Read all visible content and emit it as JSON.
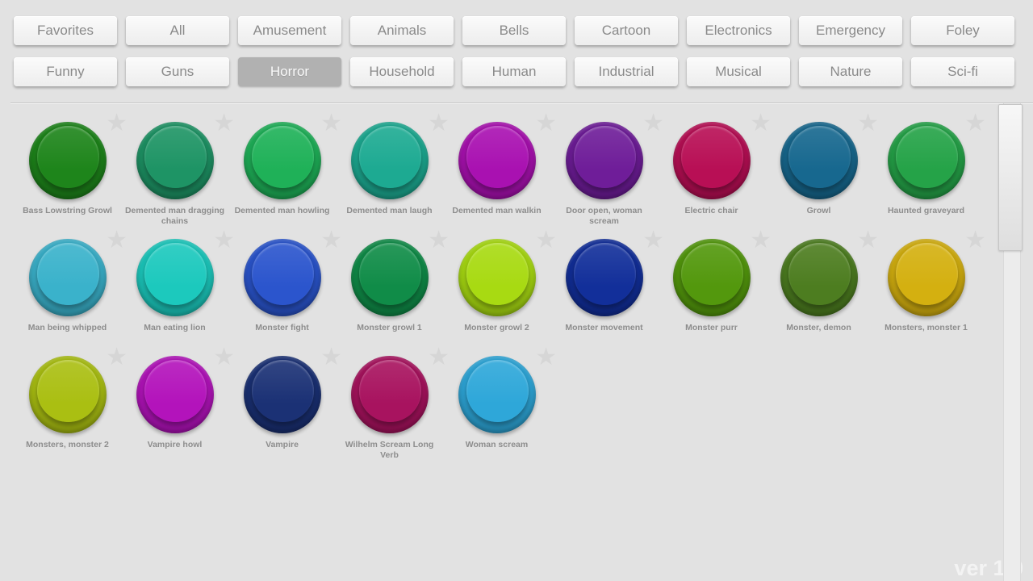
{
  "app": {
    "version_label": "ver 1.0"
  },
  "tabs": {
    "items": [
      {
        "label": "Favorites",
        "active": false
      },
      {
        "label": "All",
        "active": false
      },
      {
        "label": "Amusement",
        "active": false
      },
      {
        "label": "Animals",
        "active": false
      },
      {
        "label": "Bells",
        "active": false
      },
      {
        "label": "Cartoon",
        "active": false
      },
      {
        "label": "Electronics",
        "active": false
      },
      {
        "label": "Emergency",
        "active": false
      },
      {
        "label": "Foley",
        "active": false
      },
      {
        "label": "Funny",
        "active": false
      },
      {
        "label": "Guns",
        "active": false
      },
      {
        "label": "Horror",
        "active": true
      },
      {
        "label": "Household",
        "active": false
      },
      {
        "label": "Human",
        "active": false
      },
      {
        "label": "Industrial",
        "active": false
      },
      {
        "label": "Musical",
        "active": false
      },
      {
        "label": "Nature",
        "active": false
      },
      {
        "label": "Sci-fi",
        "active": false
      }
    ]
  },
  "sounds": {
    "star_glyph": "★",
    "items": [
      {
        "label": "Bass Lowstring Growl",
        "color": "#1e851b"
      },
      {
        "label": "Demented man dragging chains",
        "color": "#1e9465"
      },
      {
        "label": "Demented man howling",
        "color": "#1fb158"
      },
      {
        "label": "Demented man laugh",
        "color": "#1daa92"
      },
      {
        "label": "Demented man walkin",
        "color": "#a911b1"
      },
      {
        "label": "Door open, woman scream",
        "color": "#6f1d99"
      },
      {
        "label": "Electric chair",
        "color": "#b80f55"
      },
      {
        "label": "Growl",
        "color": "#17688f"
      },
      {
        "label": "Haunted graveyard",
        "color": "#25a348"
      },
      {
        "label": "Man being whipped",
        "color": "#3ab2cb"
      },
      {
        "label": "Man eating lion",
        "color": "#1cc9bd"
      },
      {
        "label": "Monster fight",
        "color": "#2b55cd"
      },
      {
        "label": "Monster growl 1",
        "color": "#108c48"
      },
      {
        "label": "Monster growl 2",
        "color": "#a8da12"
      },
      {
        "label": "Monster movement",
        "color": "#122f9a"
      },
      {
        "label": "Monster purr",
        "color": "#53980d"
      },
      {
        "label": "Monster, demon",
        "color": "#4d7d20"
      },
      {
        "label": "Monsters, monster 1",
        "color": "#d4b010"
      },
      {
        "label": "Monsters, monster 2",
        "color": "#aabf12"
      },
      {
        "label": "Vampire howl",
        "color": "#b313bb"
      },
      {
        "label": "Vampire",
        "color": "#1b3175"
      },
      {
        "label": "Wilhelm Scream Long Verb",
        "color": "#a8135f"
      },
      {
        "label": "Woman scream",
        "color": "#2ea7d9"
      }
    ]
  }
}
